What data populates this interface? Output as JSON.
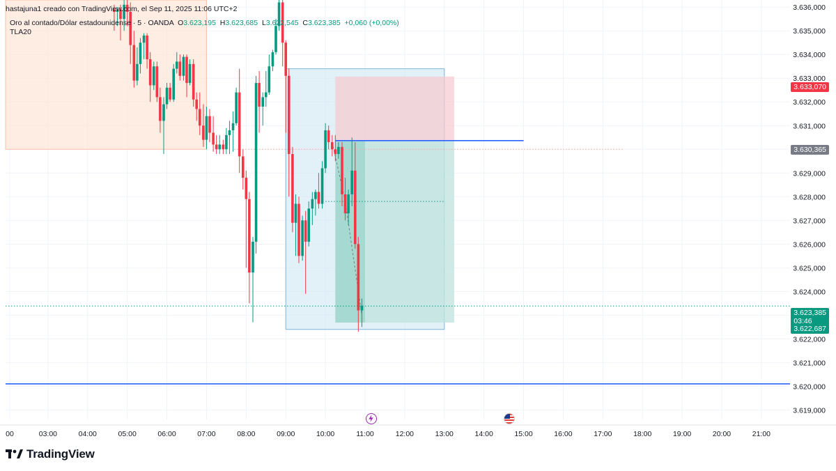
{
  "header": {
    "created": "hastajuna1 creado con TradingView.com, el Sep 11, 2025 11:06 UTC+2",
    "symbol": "Oro al contado/Dólar estadounidense · 5 · OANDA",
    "o_label": "O",
    "o_value": "3.623,195",
    "h_label": "H",
    "h_value": "3.623,685",
    "l_label": "L",
    "l_value": "3.622,545",
    "c_label": "C",
    "c_value": "3.623,385",
    "change": "+0,060 (+0,00%)",
    "indicator": "TLA20"
  },
  "price_tags": {
    "stop": "3.633,070",
    "entry": "3.630,365",
    "last": "3.623,385",
    "countdown": "03:46",
    "target": "3.622,687"
  },
  "branding": {
    "logo_text": "TradingView"
  },
  "events": [
    {
      "name": "lightning-event-icon",
      "time": "11:00"
    },
    {
      "name": "us-flag-event-icon",
      "time": "14:30"
    }
  ],
  "colors": {
    "up": "#089981",
    "down": "#f23645",
    "blue_line": "#2962ff",
    "stop_zone": "#f7c9ce",
    "target_zone": "#bfe3dd",
    "highlight_zone": "#cfe6f3",
    "session_zone": "#fde3d3"
  },
  "chart_data": {
    "type": "candlestick",
    "symbol": "Oro al contado/Dólar estadounidense",
    "timeframe_min": 5,
    "y_axis": {
      "ticks": [
        "3.636,000",
        "3.635,000",
        "3.634,000",
        "3.633,000",
        "3.632,000",
        "3.631,000",
        "3.630,000",
        "3.629,000",
        "3.628,000",
        "3.627,000",
        "3.626,000",
        "3.625,000",
        "3.624,000",
        "3.623,000",
        "3.622,000",
        "3.621,000",
        "3.620,000",
        "3.619,000"
      ],
      "range": [
        3618.6,
        3636.3
      ]
    },
    "x_axis": {
      "ticks": [
        "00",
        "03:00",
        "04:00",
        "05:00",
        "06:00",
        "07:00",
        "08:00",
        "09:00",
        "10:00",
        "11:00",
        "12:00",
        "13:00",
        "14:00",
        "15:00",
        "16:00",
        "17:00",
        "18:00",
        "19:00",
        "20:00",
        "21:00"
      ],
      "range_hours": [
        2.0,
        21.4
      ]
    },
    "horizontal_lines": [
      {
        "price": 3620.1,
        "from": 2.0,
        "to": 21.4
      },
      {
        "price": 3630.365,
        "from": 10.25,
        "to": 15.0
      }
    ],
    "dotted_lines": [
      {
        "price": 3630.0,
        "from": 7.7,
        "to": 17.5
      },
      {
        "price": 3627.8,
        "from": 10.0,
        "to": 13.0
      },
      {
        "price": 3623.385,
        "from": 2.0,
        "to": 21.4
      }
    ],
    "zones": [
      {
        "kind": "session",
        "t1": 2.0,
        "t2": 7.0,
        "p1": 3630.0,
        "p2": 3636.3
      },
      {
        "kind": "highlight",
        "t1": 9.0,
        "t2": 13.0,
        "p1": 3622.4,
        "p2": 3633.4
      },
      {
        "kind": "stop",
        "t1": 10.25,
        "t2": 13.25,
        "p1": 3630.365,
        "p2": 3633.07
      },
      {
        "kind": "target",
        "t1": 10.25,
        "t2": 13.25,
        "p1": 3622.687,
        "p2": 3630.365
      },
      {
        "kind": "target_filled",
        "t1": 10.25,
        "t2": 11.0,
        "p1": 3622.687,
        "p2": 3630.365
      }
    ],
    "candles": [
      [
        4.67,
        3635.9,
        3636.1,
        3635.0,
        3635.8
      ],
      [
        4.75,
        3635.8,
        3636.0,
        3635.2,
        3635.9
      ],
      [
        4.83,
        3635.9,
        3636.1,
        3634.6,
        3635.5
      ],
      [
        4.92,
        3635.5,
        3636.3,
        3635.0,
        3636.1
      ],
      [
        5.0,
        3636.1,
        3636.3,
        3635.2,
        3635.8
      ],
      [
        5.08,
        3635.8,
        3636.2,
        3633.6,
        3634.4
      ],
      [
        5.17,
        3634.4,
        3635.0,
        3632.6,
        3632.9
      ],
      [
        5.25,
        3632.9,
        3634.3,
        3632.7,
        3633.6
      ],
      [
        5.33,
        3633.6,
        3634.7,
        3633.2,
        3634.5
      ],
      [
        5.42,
        3634.5,
        3634.9,
        3633.8,
        3634.8
      ],
      [
        5.5,
        3634.8,
        3634.9,
        3633.4,
        3633.8
      ],
      [
        5.58,
        3633.8,
        3634.1,
        3632.0,
        3632.7
      ],
      [
        5.67,
        3632.7,
        3633.7,
        3632.5,
        3633.5
      ],
      [
        5.75,
        3633.5,
        3633.7,
        3632.0,
        3632.2
      ],
      [
        5.83,
        3632.2,
        3632.6,
        3630.7,
        3631.2
      ],
      [
        5.92,
        3631.2,
        3632.2,
        3629.8,
        3631.9
      ],
      [
        6.0,
        3631.9,
        3632.8,
        3631.7,
        3632.6
      ],
      [
        6.08,
        3632.6,
        3632.8,
        3632.0,
        3632.1
      ],
      [
        6.17,
        3632.1,
        3633.6,
        3632.0,
        3633.4
      ],
      [
        6.25,
        3633.4,
        3634.1,
        3633.2,
        3633.7
      ],
      [
        6.33,
        3633.7,
        3634.0,
        3632.9,
        3633.1
      ],
      [
        6.42,
        3633.1,
        3634.0,
        3632.9,
        3633.9
      ],
      [
        6.5,
        3633.9,
        3634.0,
        3632.2,
        3632.8
      ],
      [
        6.58,
        3632.8,
        3633.8,
        3632.7,
        3633.6
      ],
      [
        6.67,
        3633.6,
        3633.8,
        3631.8,
        3632.1
      ],
      [
        6.75,
        3632.1,
        3632.4,
        3631.2,
        3631.7
      ],
      [
        6.83,
        3631.7,
        3632.4,
        3630.6,
        3631.0
      ],
      [
        6.92,
        3631.0,
        3631.9,
        3630.1,
        3630.4
      ],
      [
        7.0,
        3630.4,
        3631.8,
        3630.0,
        3631.4
      ],
      [
        7.08,
        3631.4,
        3631.7,
        3630.3,
        3630.7
      ],
      [
        7.17,
        3630.7,
        3631.4,
        3629.9,
        3630.2
      ],
      [
        7.25,
        3630.2,
        3630.6,
        3629.8,
        3630.0
      ],
      [
        7.33,
        3630.0,
        3630.6,
        3629.8,
        3630.2
      ],
      [
        7.42,
        3630.2,
        3630.4,
        3629.8,
        3630.0
      ],
      [
        7.5,
        3630.0,
        3630.9,
        3629.8,
        3630.6
      ],
      [
        7.58,
        3630.6,
        3631.2,
        3629.8,
        3630.8
      ],
      [
        7.67,
        3630.8,
        3631.6,
        3629.9,
        3631.1
      ],
      [
        7.75,
        3631.1,
        3632.6,
        3631.0,
        3632.4
      ],
      [
        7.83,
        3632.4,
        3633.4,
        3629.0,
        3629.7
      ],
      [
        7.92,
        3629.7,
        3630.0,
        3628.3,
        3628.8
      ],
      [
        8.0,
        3628.8,
        3629.1,
        3625.0,
        3627.9
      ],
      [
        8.08,
        3627.9,
        3628.2,
        3623.5,
        3624.8
      ],
      [
        8.17,
        3624.8,
        3626.3,
        3622.7,
        3626.1
      ],
      [
        8.25,
        3626.1,
        3633.1,
        3625.6,
        3632.8
      ],
      [
        8.33,
        3632.8,
        3633.3,
        3630.7,
        3631.8
      ],
      [
        8.42,
        3631.8,
        3632.4,
        3631.0,
        3632.2
      ],
      [
        8.5,
        3632.2,
        3633.3,
        3631.8,
        3632.4
      ],
      [
        8.58,
        3632.4,
        3634.0,
        3632.3,
        3633.5
      ],
      [
        8.67,
        3633.5,
        3634.2,
        3633.3,
        3634.1
      ],
      [
        8.75,
        3634.1,
        3635.5,
        3634.0,
        3635.2
      ],
      [
        8.83,
        3635.2,
        3636.3,
        3635.0,
        3636.2
      ],
      [
        8.92,
        3636.2,
        3636.3,
        3633.5,
        3634.5
      ],
      [
        9.0,
        3634.5,
        3634.6,
        3630.7,
        3633.1
      ],
      [
        9.08,
        3633.1,
        3633.4,
        3628.0,
        3629.8
      ],
      [
        9.17,
        3629.8,
        3630.1,
        3626.5,
        3626.9
      ],
      [
        9.25,
        3626.9,
        3628.1,
        3625.5,
        3627.7
      ],
      [
        9.33,
        3627.7,
        3628.0,
        3625.2,
        3625.5
      ],
      [
        9.42,
        3625.5,
        3627.2,
        3625.3,
        3627.0
      ],
      [
        9.5,
        3627.0,
        3627.4,
        3623.9,
        3626.1
      ],
      [
        9.58,
        3626.1,
        3627.8,
        3625.9,
        3627.5
      ],
      [
        9.67,
        3627.5,
        3628.2,
        3626.8,
        3627.9
      ],
      [
        9.75,
        3627.9,
        3628.3,
        3627.2,
        3628.2
      ],
      [
        9.83,
        3628.2,
        3629.0,
        3627.5,
        3627.7
      ],
      [
        9.92,
        3627.7,
        3629.5,
        3627.5,
        3629.2
      ],
      [
        10.0,
        3629.2,
        3631.1,
        3629.0,
        3630.8
      ],
      [
        10.08,
        3630.8,
        3631.0,
        3630.0,
        3630.3
      ],
      [
        10.17,
        3630.3,
        3630.6,
        3629.7,
        3630.0
      ],
      [
        10.25,
        3630.0,
        3630.6,
        3629.5,
        3629.8
      ],
      [
        10.33,
        3629.8,
        3630.3,
        3629.6,
        3630.1
      ],
      [
        10.42,
        3630.1,
        3630.3,
        3627.6,
        3628.1
      ],
      [
        10.5,
        3628.1,
        3628.8,
        3627.0,
        3627.3
      ],
      [
        10.58,
        3627.3,
        3628.3,
        3626.8,
        3628.1
      ],
      [
        10.67,
        3628.1,
        3630.5,
        3627.6,
        3629.1
      ],
      [
        10.75,
        3629.1,
        3630.3,
        3625.8,
        3626.0
      ],
      [
        10.83,
        3626.0,
        3626.3,
        3622.3,
        3623.2
      ],
      [
        10.92,
        3623.2,
        3623.7,
        3622.5,
        3623.4
      ]
    ]
  }
}
